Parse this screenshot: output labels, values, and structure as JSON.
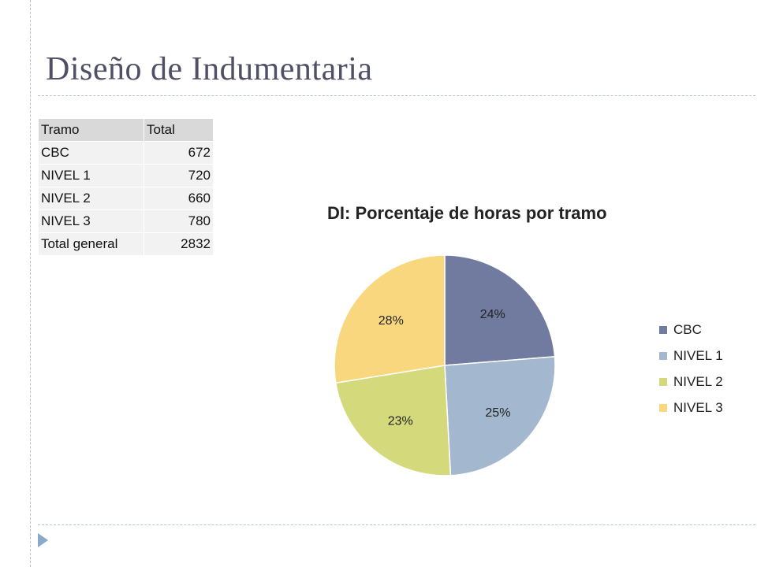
{
  "slide": {
    "title": "Diseño de Indumentaria"
  },
  "table": {
    "headers": [
      "Tramo",
      "Total"
    ],
    "rows": [
      [
        "CBC",
        "672"
      ],
      [
        "NIVEL 1",
        "720"
      ],
      [
        "NIVEL 2",
        "660"
      ],
      [
        "NIVEL 3",
        "780"
      ],
      [
        "Total general",
        "2832"
      ]
    ]
  },
  "chart_data": {
    "type": "pie",
    "title": "DI: Porcentaje de horas por tramo",
    "categories": [
      "CBC",
      "NIVEL 1",
      "NIVEL 2",
      "NIVEL 3"
    ],
    "values": [
      672,
      720,
      660,
      780
    ],
    "data_labels": [
      "24%",
      "25%",
      "23%",
      "28%"
    ],
    "colors": [
      "#717ba0",
      "#a3b8cf",
      "#d4da7b",
      "#f8d77f"
    ],
    "legend": "right",
    "start_angle": "12 o'clock",
    "direction": "clockwise"
  }
}
